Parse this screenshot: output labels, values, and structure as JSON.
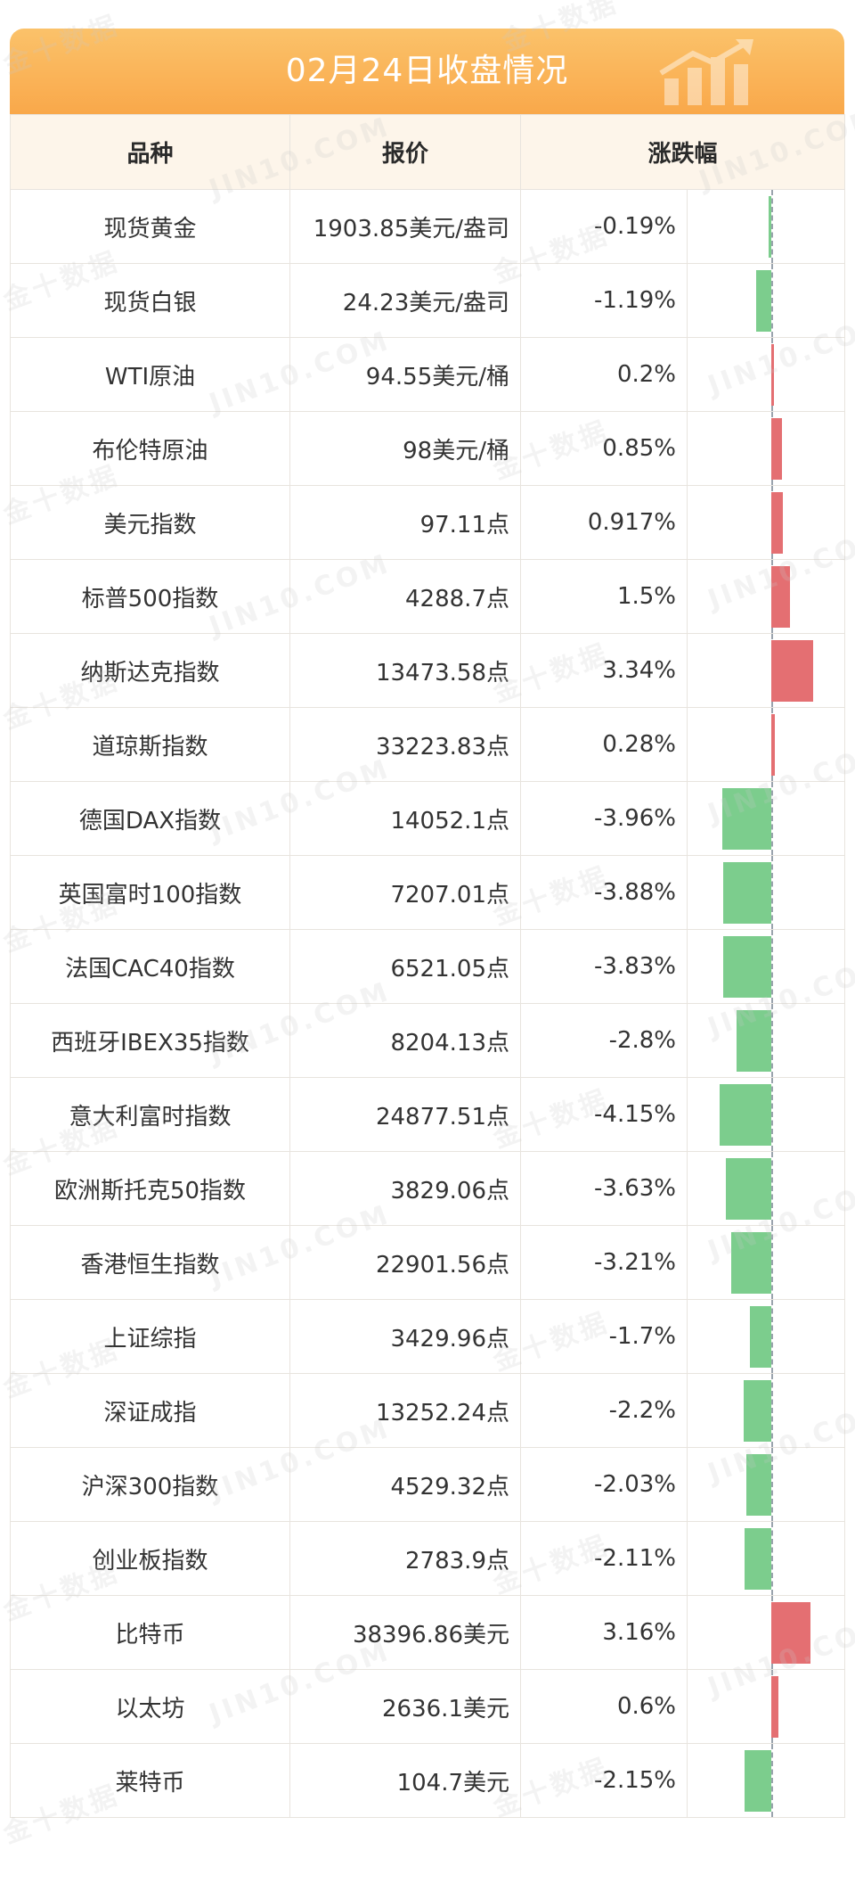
{
  "title": "02月24日收盘情况",
  "columns": [
    "品种",
    "报价",
    "涨跌幅"
  ],
  "watermark": [
    "金十数据",
    "JIN10.COM"
  ],
  "colors": {
    "up": "#e46f72",
    "down": "#7ccd8d",
    "header": "#f9a84a",
    "header_row": "#fdf5ea"
  },
  "rows": [
    {
      "name": "现货黄金",
      "price": "1903.85美元/盎司",
      "change": "-0.19%",
      "value": -0.19
    },
    {
      "name": "现货白银",
      "price": "24.23美元/盎司",
      "change": "-1.19%",
      "value": -1.19
    },
    {
      "name": "WTI原油",
      "price": "94.55美元/桶",
      "change": "0.2%",
      "value": 0.2
    },
    {
      "name": "布伦特原油",
      "price": "98美元/桶",
      "change": "0.85%",
      "value": 0.85
    },
    {
      "name": "美元指数",
      "price": "97.11点",
      "change": "0.917%",
      "value": 0.917
    },
    {
      "name": "标普500指数",
      "price": "4288.7点",
      "change": "1.5%",
      "value": 1.5
    },
    {
      "name": "纳斯达克指数",
      "price": "13473.58点",
      "change": "3.34%",
      "value": 3.34
    },
    {
      "name": "道琼斯指数",
      "price": "33223.83点",
      "change": "0.28%",
      "value": 0.28
    },
    {
      "name": "德国DAX指数",
      "price": "14052.1点",
      "change": "-3.96%",
      "value": -3.96
    },
    {
      "name": "英国富时100指数",
      "price": "7207.01点",
      "change": "-3.88%",
      "value": -3.88
    },
    {
      "name": "法国CAC40指数",
      "price": "6521.05点",
      "change": "-3.83%",
      "value": -3.83
    },
    {
      "name": "西班牙IBEX35指数",
      "price": "8204.13点",
      "change": "-2.8%",
      "value": -2.8
    },
    {
      "name": "意大利富时指数",
      "price": "24877.51点",
      "change": "-4.15%",
      "value": -4.15
    },
    {
      "name": "欧洲斯托克50指数",
      "price": "3829.06点",
      "change": "-3.63%",
      "value": -3.63
    },
    {
      "name": "香港恒生指数",
      "price": "22901.56点",
      "change": "-3.21%",
      "value": -3.21
    },
    {
      "name": "上证综指",
      "price": "3429.96点",
      "change": "-1.7%",
      "value": -1.7
    },
    {
      "name": "深证成指",
      "price": "13252.24点",
      "change": "-2.2%",
      "value": -2.2
    },
    {
      "name": "沪深300指数",
      "price": "4529.32点",
      "change": "-2.03%",
      "value": -2.03
    },
    {
      "name": "创业板指数",
      "price": "2783.9点",
      "change": "-2.11%",
      "value": -2.11
    },
    {
      "name": "比特币",
      "price": "38396.86美元",
      "change": "3.16%",
      "value": 3.16
    },
    {
      "name": "以太坊",
      "price": "2636.1美元",
      "change": "0.6%",
      "value": 0.6
    },
    {
      "name": "莱特币",
      "price": "104.7美元",
      "change": "-2.15%",
      "value": -2.15
    }
  ]
}
